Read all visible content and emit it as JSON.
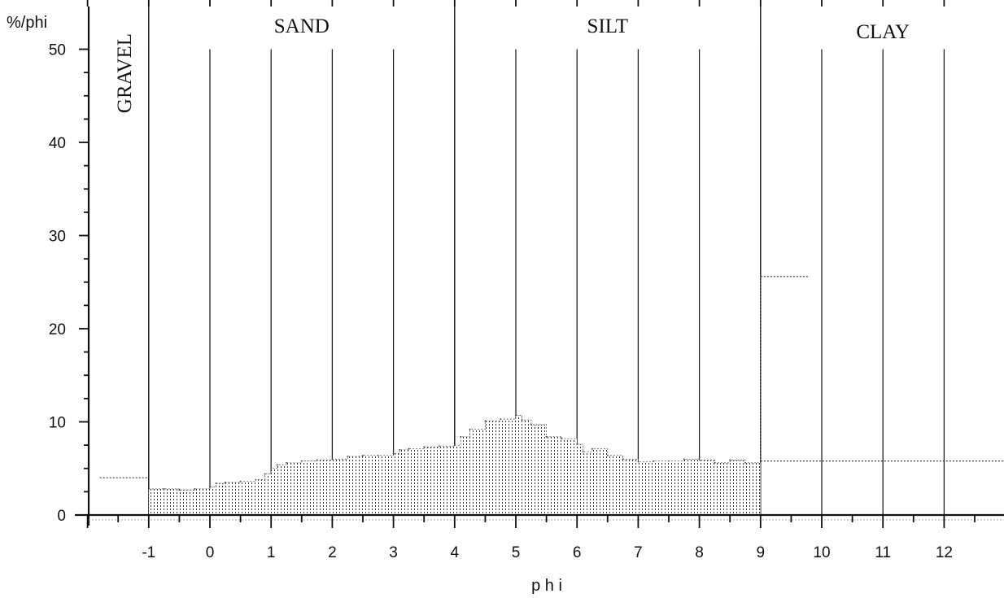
{
  "chart_data": {
    "type": "area",
    "title": "",
    "xlabel": "p h i",
    "ylabel": "%/phi",
    "xlim": [
      -2,
      13
    ],
    "ylim": [
      0,
      50
    ],
    "x_ticks": [
      -1,
      0,
      1,
      2,
      3,
      4,
      5,
      6,
      7,
      8,
      9,
      10,
      11,
      12
    ],
    "y_ticks": [
      0,
      10,
      20,
      30,
      40,
      50
    ],
    "grid": "vertical lines at each phi unit",
    "regions": [
      {
        "label": "GRAVEL",
        "from": -2,
        "to": -1
      },
      {
        "label": "SAND",
        "from": -1,
        "to": 4
      },
      {
        "label": "SILT",
        "from": 4,
        "to": 9
      },
      {
        "label": "CLAY",
        "from": 9,
        "to": 13
      }
    ],
    "series": [
      {
        "x": [
          -1.0,
          -0.75,
          -0.5,
          -0.25,
          0.0,
          0.1,
          0.25,
          0.5,
          0.75,
          0.9,
          1.0,
          1.1,
          1.25,
          1.5,
          1.75,
          2.0,
          2.25,
          2.5,
          2.75,
          3.0,
          3.1,
          3.25,
          3.5,
          3.75,
          4.0,
          4.1,
          4.25,
          4.5,
          4.75,
          5.0,
          5.1,
          5.25,
          5.5,
          5.75,
          6.0,
          6.1,
          6.25,
          6.5,
          6.75,
          7.0,
          7.25,
          7.5,
          7.75,
          8.0,
          8.25,
          8.5,
          8.75,
          9.0
        ],
        "values": [
          2.8,
          2.8,
          2.7,
          2.8,
          3.0,
          3.4,
          3.5,
          3.6,
          3.8,
          4.4,
          5.0,
          5.4,
          5.6,
          5.8,
          5.9,
          6.0,
          6.3,
          6.4,
          6.4,
          6.6,
          7.0,
          7.1,
          7.3,
          7.4,
          7.5,
          8.4,
          9.2,
          10.1,
          10.3,
          10.7,
          10.2,
          9.7,
          8.4,
          8.2,
          7.6,
          6.8,
          7.1,
          6.4,
          6.0,
          5.7,
          5.8,
          5.8,
          6.0,
          5.9,
          5.6,
          5.9,
          5.6,
          4.5
        ]
      }
    ],
    "dashed_segments": [
      {
        "x_from": -1.8,
        "x_to": -1.0,
        "y": 4
      },
      {
        "x_from": 9.0,
        "x_to": 9.8,
        "y": 25.6
      },
      {
        "x_from": 9.0,
        "x_to": 13.0,
        "y": 5.8
      }
    ]
  }
}
